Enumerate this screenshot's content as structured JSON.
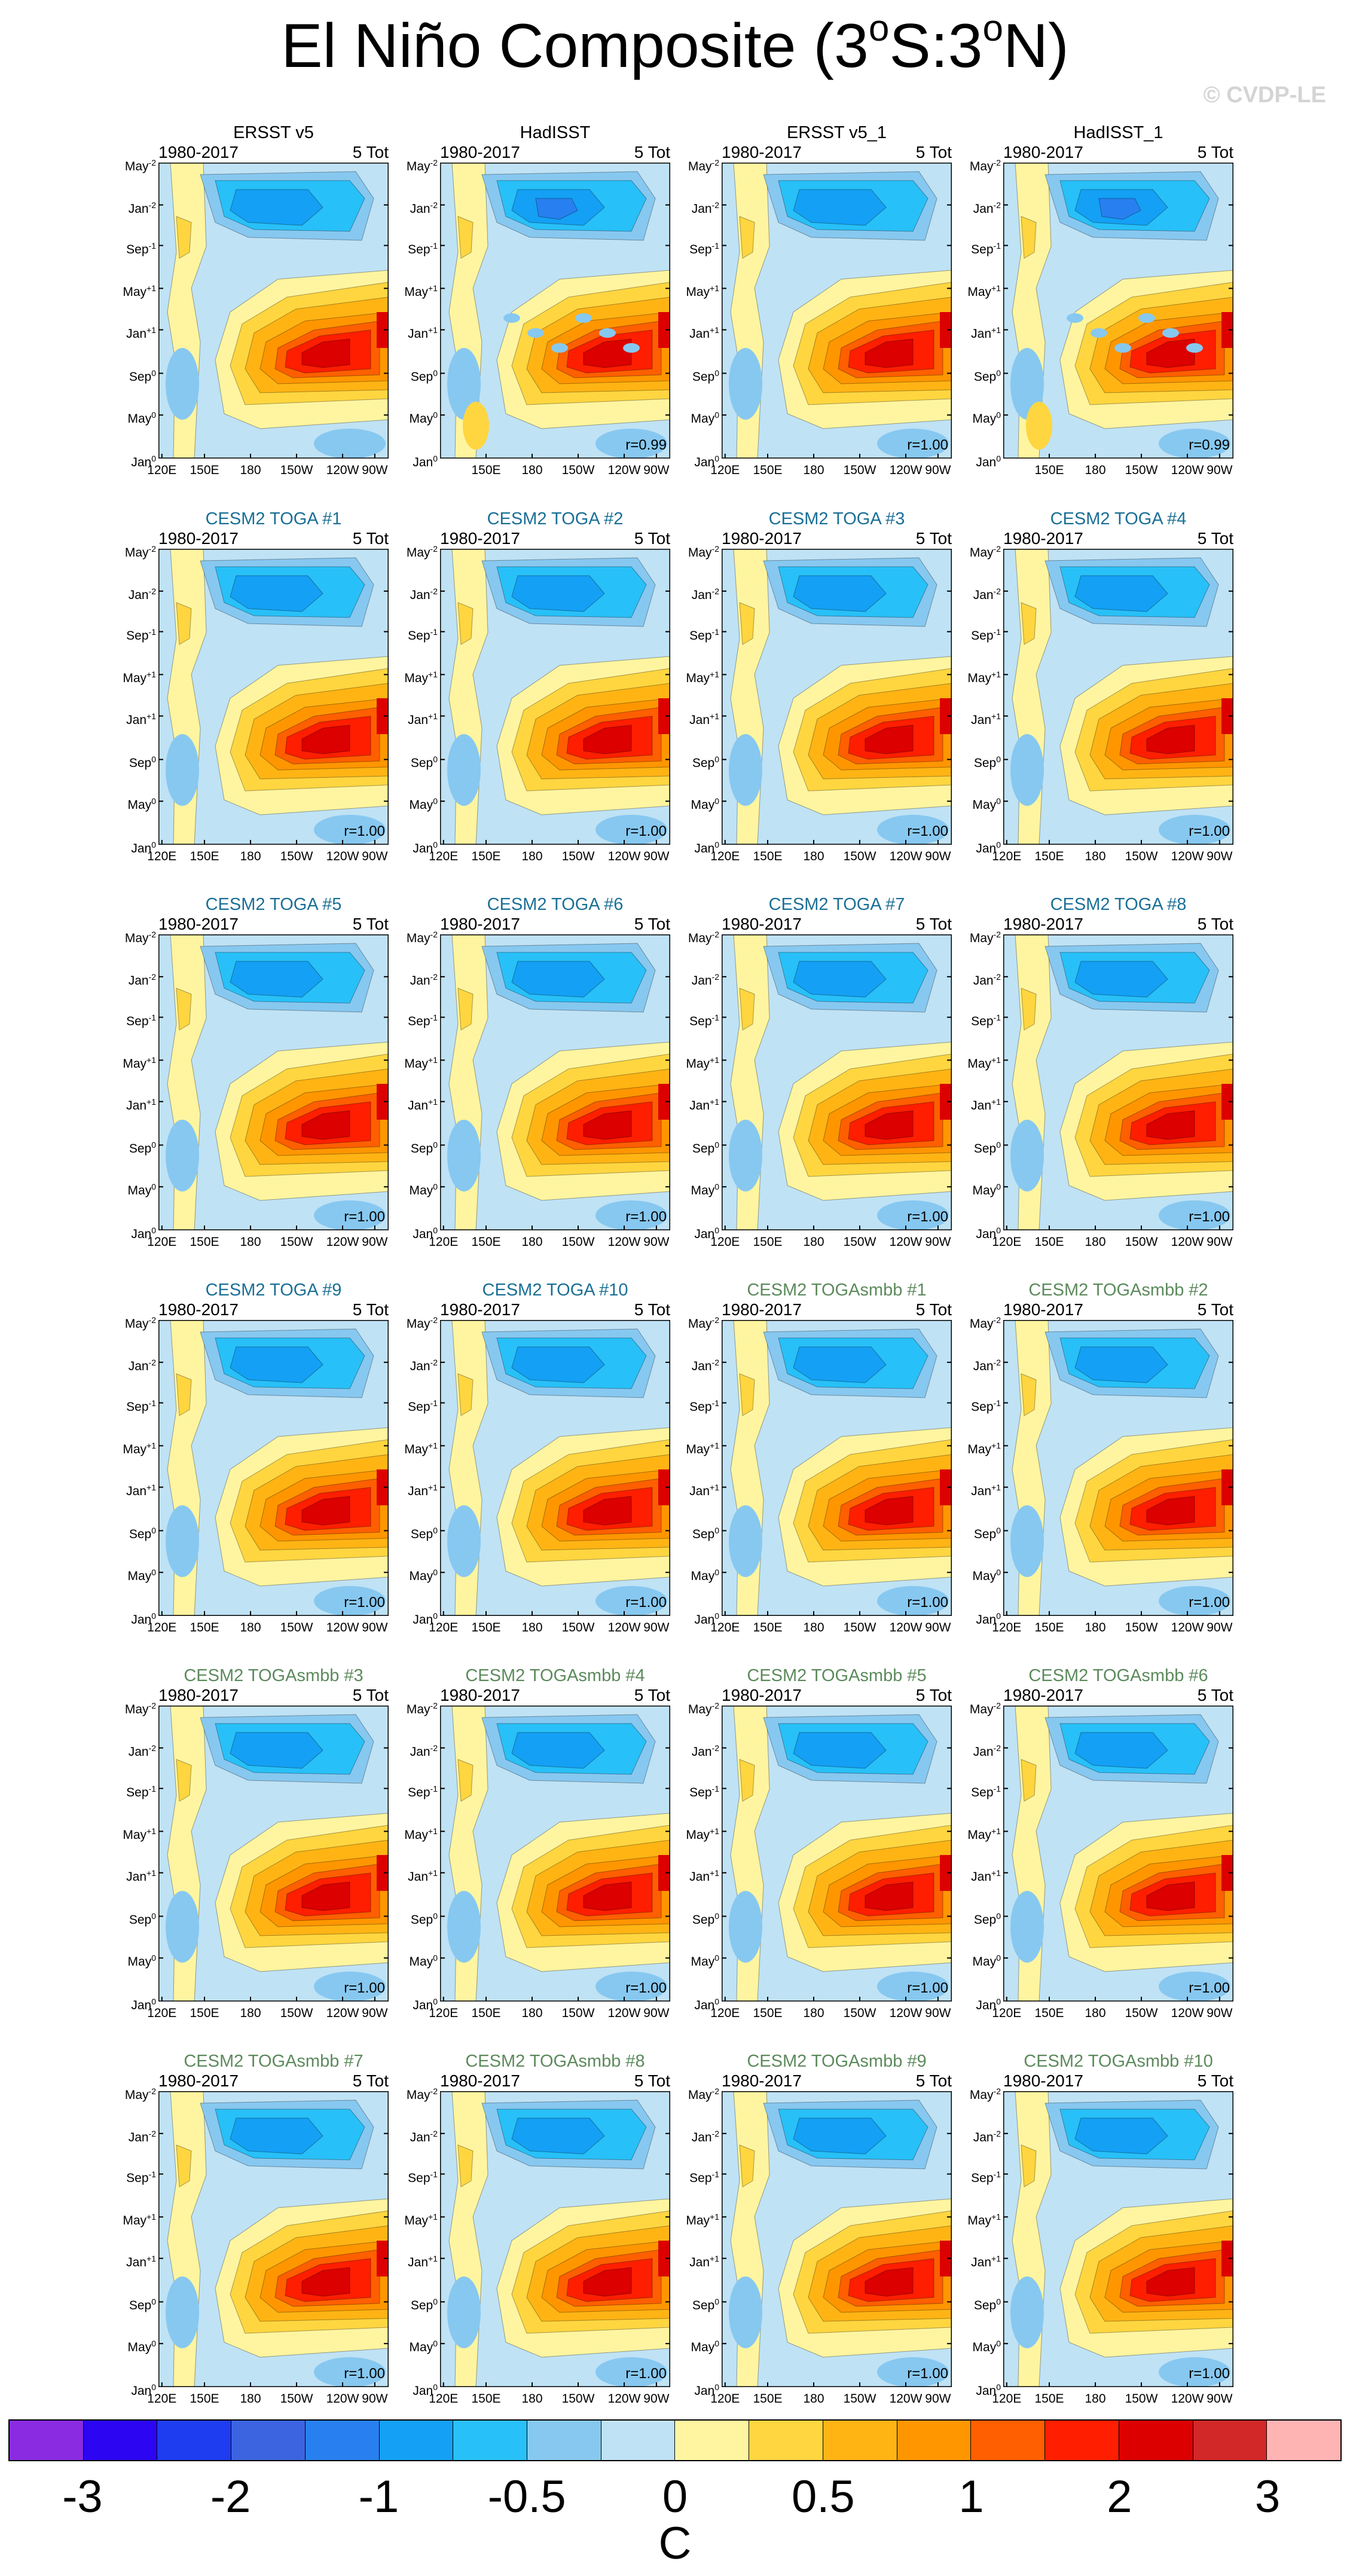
{
  "title": {
    "prefix": "El Niño Composite (3",
    "sup1": "o",
    "mid": "S:3",
    "sup2": "o",
    "suffix": "N)"
  },
  "watermark": "© CVDP-LE",
  "chart_data": {
    "type": "heatmap",
    "description_variable": "SST anomaly Hovmöller composite",
    "x_ticks": [
      "120E",
      "150E",
      "180",
      "150W",
      "120W",
      "90W"
    ],
    "x_ticks_observed_hadisst": [
      "150E",
      "180",
      "150W",
      "120W",
      "90W"
    ],
    "y_ticks": [
      {
        "base": "Jan",
        "sup": "0"
      },
      {
        "base": "May",
        "sup": "0"
      },
      {
        "base": "Sep",
        "sup": "0"
      },
      {
        "base": "Jan",
        "sup": "+1"
      },
      {
        "base": "May",
        "sup": "+1"
      },
      {
        "base": "Sep",
        "sup": "-1"
      },
      {
        "base": "Jan",
        "sup": "-2"
      },
      {
        "base": "May",
        "sup": "-2"
      }
    ],
    "panels": [
      {
        "title": "ERSST v5",
        "group": "obs",
        "period": "1980-2017",
        "tot": "5 Tot",
        "r": "",
        "hadisst": false
      },
      {
        "title": "HadISST",
        "group": "obs",
        "period": "1980-2017",
        "tot": "5 Tot",
        "r": "r=0.99",
        "hadisst": true
      },
      {
        "title": "ERSST v5_1",
        "group": "obs",
        "period": "1980-2017",
        "tot": "5 Tot",
        "r": "r=1.00",
        "hadisst": false
      },
      {
        "title": "HadISST_1",
        "group": "obs",
        "period": "1980-2017",
        "tot": "5 Tot",
        "r": "r=0.99",
        "hadisst": true
      },
      {
        "title": "CESM2 TOGA #1",
        "group": "toga",
        "period": "1980-2017",
        "tot": "5 Tot",
        "r": "r=1.00",
        "hadisst": false
      },
      {
        "title": "CESM2 TOGA #2",
        "group": "toga",
        "period": "1980-2017",
        "tot": "5 Tot",
        "r": "r=1.00",
        "hadisst": false
      },
      {
        "title": "CESM2 TOGA #3",
        "group": "toga",
        "period": "1980-2017",
        "tot": "5 Tot",
        "r": "r=1.00",
        "hadisst": false
      },
      {
        "title": "CESM2 TOGA #4",
        "group": "toga",
        "period": "1980-2017",
        "tot": "5 Tot",
        "r": "r=1.00",
        "hadisst": false
      },
      {
        "title": "CESM2 TOGA #5",
        "group": "toga",
        "period": "1980-2017",
        "tot": "5 Tot",
        "r": "r=1.00",
        "hadisst": false
      },
      {
        "title": "CESM2 TOGA #6",
        "group": "toga",
        "period": "1980-2017",
        "tot": "5 Tot",
        "r": "r=1.00",
        "hadisst": false
      },
      {
        "title": "CESM2 TOGA #7",
        "group": "toga",
        "period": "1980-2017",
        "tot": "5 Tot",
        "r": "r=1.00",
        "hadisst": false
      },
      {
        "title": "CESM2 TOGA #8",
        "group": "toga",
        "period": "1980-2017",
        "tot": "5 Tot",
        "r": "r=1.00",
        "hadisst": false
      },
      {
        "title": "CESM2 TOGA #9",
        "group": "toga",
        "period": "1980-2017",
        "tot": "5 Tot",
        "r": "r=1.00",
        "hadisst": false
      },
      {
        "title": "CESM2 TOGA #10",
        "group": "toga",
        "period": "1980-2017",
        "tot": "5 Tot",
        "r": "r=1.00",
        "hadisst": false
      },
      {
        "title": "CESM2 TOGAsmbb #1",
        "group": "smbb",
        "period": "1980-2017",
        "tot": "5 Tot",
        "r": "r=1.00",
        "hadisst": false
      },
      {
        "title": "CESM2 TOGAsmbb #2",
        "group": "smbb",
        "period": "1980-2017",
        "tot": "5 Tot",
        "r": "r=1.00",
        "hadisst": false
      },
      {
        "title": "CESM2 TOGAsmbb #3",
        "group": "smbb",
        "period": "1980-2017",
        "tot": "5 Tot",
        "r": "r=1.00",
        "hadisst": false
      },
      {
        "title": "CESM2 TOGAsmbb #4",
        "group": "smbb",
        "period": "1980-2017",
        "tot": "5 Tot",
        "r": "r=1.00",
        "hadisst": false
      },
      {
        "title": "CESM2 TOGAsmbb #5",
        "group": "smbb",
        "period": "1980-2017",
        "tot": "5 Tot",
        "r": "r=1.00",
        "hadisst": false
      },
      {
        "title": "CESM2 TOGAsmbb #6",
        "group": "smbb",
        "period": "1980-2017",
        "tot": "5 Tot",
        "r": "r=1.00",
        "hadisst": false
      },
      {
        "title": "CESM2 TOGAsmbb #7",
        "group": "smbb",
        "period": "1980-2017",
        "tot": "5 Tot",
        "r": "r=1.00",
        "hadisst": false
      },
      {
        "title": "CESM2 TOGAsmbb #8",
        "group": "smbb",
        "period": "1980-2017",
        "tot": "5 Tot",
        "r": "r=1.00",
        "hadisst": false
      },
      {
        "title": "CESM2 TOGAsmbb #9",
        "group": "smbb",
        "period": "1980-2017",
        "tot": "5 Tot",
        "r": "r=1.00",
        "hadisst": false
      },
      {
        "title": "CESM2 TOGAsmbb #10",
        "group": "smbb",
        "period": "1980-2017",
        "tot": "5 Tot",
        "r": "r=1.00",
        "hadisst": false
      }
    ],
    "colorbar": {
      "colors": [
        "#8a2be2",
        "#2c05f2",
        "#1e3cf0",
        "#3c64e0",
        "#2880f0",
        "#14a0f5",
        "#28c0f8",
        "#87c8f0",
        "#bfe2f5",
        "#fff5a0",
        "#ffd640",
        "#ffb414",
        "#ff9600",
        "#ff5f00",
        "#ff1e00",
        "#dc0000",
        "#d22828",
        "#ffb4b4"
      ],
      "labels": [
        "-3",
        "-2",
        "-1",
        "-0.5",
        "0",
        "0.5",
        "1",
        "2",
        "3"
      ],
      "units": "C"
    }
  }
}
